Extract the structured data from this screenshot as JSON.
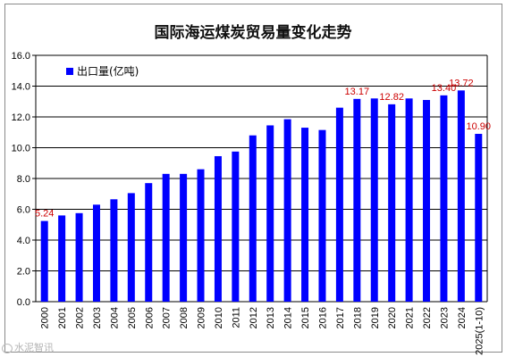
{
  "chart_data": {
    "type": "bar",
    "title": "国际海运煤炭贸易量变化走势",
    "xlabel": "",
    "ylabel": "",
    "categories": [
      "2000",
      "2001",
      "2002",
      "2003",
      "2004",
      "2005",
      "2006",
      "2007",
      "2008",
      "2009",
      "2010",
      "2011",
      "2012",
      "2013",
      "2014",
      "2015",
      "2016",
      "2017",
      "2018",
      "2019",
      "2020",
      "2021",
      "2022",
      "2023",
      "2024",
      "2025(1-10)"
    ],
    "series": [
      {
        "name": "出口量(亿吨)",
        "color": "#0000ff",
        "values": [
          5.24,
          5.6,
          5.75,
          6.3,
          6.65,
          7.05,
          7.7,
          8.3,
          8.3,
          8.6,
          9.45,
          9.75,
          10.8,
          11.45,
          11.85,
          11.3,
          11.15,
          12.6,
          13.17,
          13.2,
          12.82,
          13.2,
          13.1,
          13.4,
          13.72,
          10.9
        ]
      }
    ],
    "data_labels": [
      {
        "category": "2000",
        "text": "5.24"
      },
      {
        "category": "2018",
        "text": "13.17"
      },
      {
        "category": "2020",
        "text": "12.82"
      },
      {
        "category": "2023",
        "text": "13.40"
      },
      {
        "category": "2024",
        "text": "13.72"
      },
      {
        "category": "2025(1-10)",
        "text": "10.90"
      }
    ],
    "y_ticks": [
      "0.0",
      "2.0",
      "4.0",
      "6.0",
      "8.0",
      "10.0",
      "12.0",
      "14.0",
      "16.0"
    ],
    "ylim": [
      0,
      16
    ],
    "grid": true,
    "legend_position": "top-left",
    "label_color": "#cc0000"
  },
  "watermark": {
    "text": "水泥智讯"
  }
}
